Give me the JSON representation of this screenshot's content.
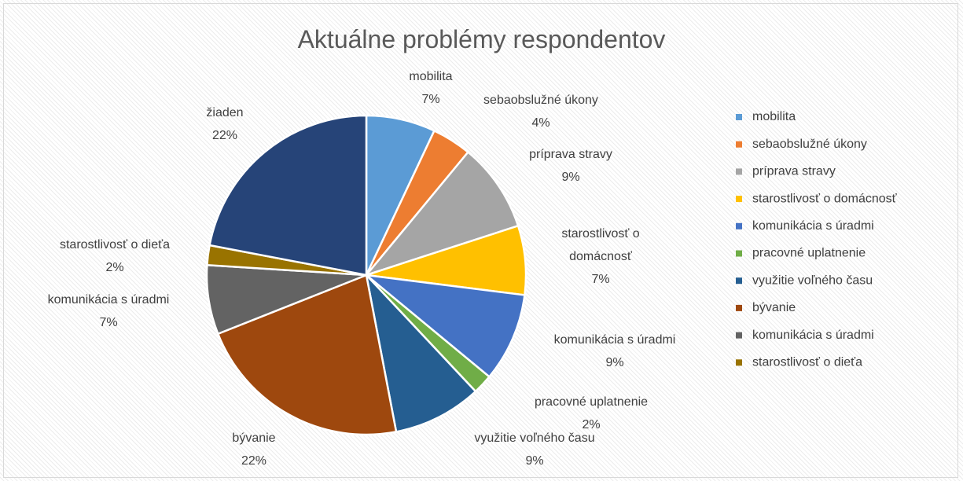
{
  "chart_data": {
    "type": "pie",
    "title": "Aktuálne problémy respondentov",
    "categories": [
      "mobilita",
      "sebaobslužné úkony",
      "príprava stravy",
      "starostlivosť o domácnosť",
      "komunikácia s úradmi",
      "pracovné uplatnenie",
      "využitie voľného času",
      "bývanie",
      "komunikácia s úradmi",
      "starostlivosť o dieťa",
      "žiaden"
    ],
    "values": [
      7,
      4,
      9,
      7,
      9,
      2,
      9,
      22,
      7,
      2,
      22
    ],
    "value_labels": [
      "7%",
      "4%",
      "9%",
      "7%",
      "9%",
      "2%",
      "9%",
      "22%",
      "7%",
      "2%",
      "22%"
    ],
    "colors": [
      "#5b9bd5",
      "#ed7d31",
      "#a5a5a5",
      "#ffc000",
      "#4472c4",
      "#70ad47",
      "#255e91",
      "#9e480e",
      "#636363",
      "#997300",
      "#264478"
    ],
    "legend": "right"
  }
}
